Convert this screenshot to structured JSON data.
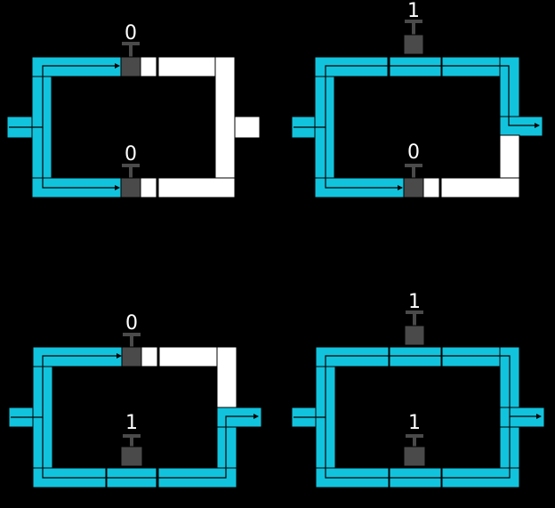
{
  "colors": {
    "background": "#000000",
    "water": "#12c3dd",
    "dry_pipe": "#ffffff",
    "valve": "#4a4a4a",
    "pipe_outline": "#000000",
    "label": "#ffffff"
  },
  "panels": [
    {
      "id": "panel-top-left",
      "valve_top": {
        "label": "0",
        "state": "closed"
      },
      "valve_bottom": {
        "label": "0",
        "state": "closed"
      },
      "output": "dry"
    },
    {
      "id": "panel-top-right",
      "valve_top": {
        "label": "1",
        "state": "open"
      },
      "valve_bottom": {
        "label": "0",
        "state": "closed"
      },
      "output": "flowing"
    },
    {
      "id": "panel-bottom-left",
      "valve_top": {
        "label": "0",
        "state": "closed"
      },
      "valve_bottom": {
        "label": "1",
        "state": "open"
      },
      "output": "flowing"
    },
    {
      "id": "panel-bottom-right",
      "valve_top": {
        "label": "1",
        "state": "open"
      },
      "valve_bottom": {
        "label": "1",
        "state": "open"
      },
      "output": "flowing"
    }
  ]
}
